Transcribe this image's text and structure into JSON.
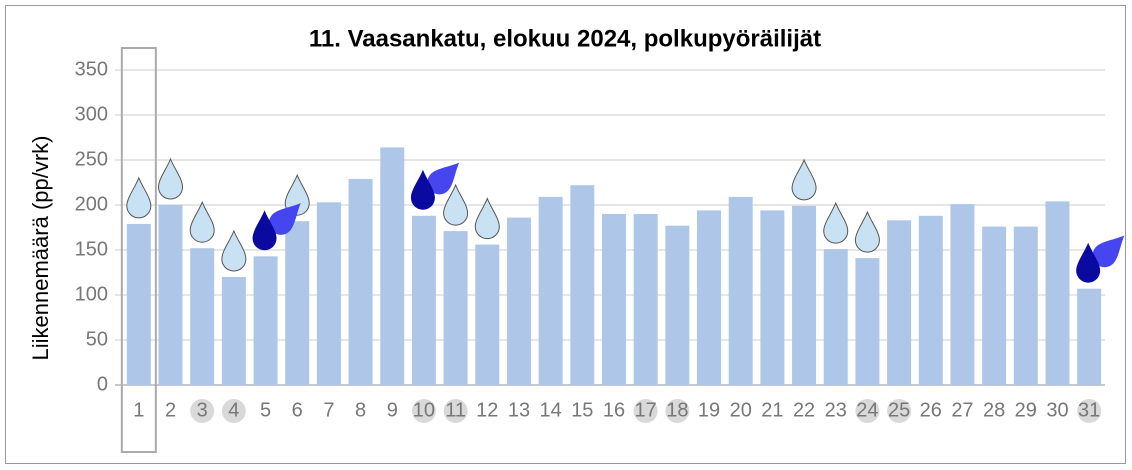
{
  "chart_data": {
    "type": "bar",
    "title": "11. Vaasankatu, elokuu 2024, polkupyöräilijät",
    "y_label": "Liikennemäärä (pp/vrk)",
    "categories": [
      "1",
      "2",
      "3",
      "4",
      "5",
      "6",
      "7",
      "8",
      "9",
      "10",
      "11",
      "12",
      "13",
      "14",
      "15",
      "16",
      "17",
      "18",
      "19",
      "20",
      "21",
      "22",
      "23",
      "24",
      "25",
      "26",
      "27",
      "28",
      "29",
      "30",
      "31"
    ],
    "values": [
      179,
      200,
      152,
      120,
      143,
      182,
      203,
      229,
      264,
      188,
      171,
      156,
      186,
      209,
      222,
      190,
      190,
      177,
      194,
      209,
      194,
      199,
      151,
      141,
      183,
      188,
      201,
      176,
      176,
      204,
      107
    ],
    "color": "#aec7e8",
    "ylim": [
      0,
      350
    ],
    "yticks": [
      0,
      50,
      100,
      150,
      200,
      250,
      300,
      350
    ],
    "grid": true,
    "weekend": [
      "3",
      "4",
      "10",
      "11",
      "17",
      "18",
      "24",
      "25",
      "31"
    ],
    "selected": "1",
    "light_rain": [
      "1",
      "2",
      "3",
      "4",
      "6",
      "11",
      "12",
      "22",
      "23",
      "24"
    ],
    "heavy_rain": [
      "5",
      "10",
      "31"
    ]
  }
}
